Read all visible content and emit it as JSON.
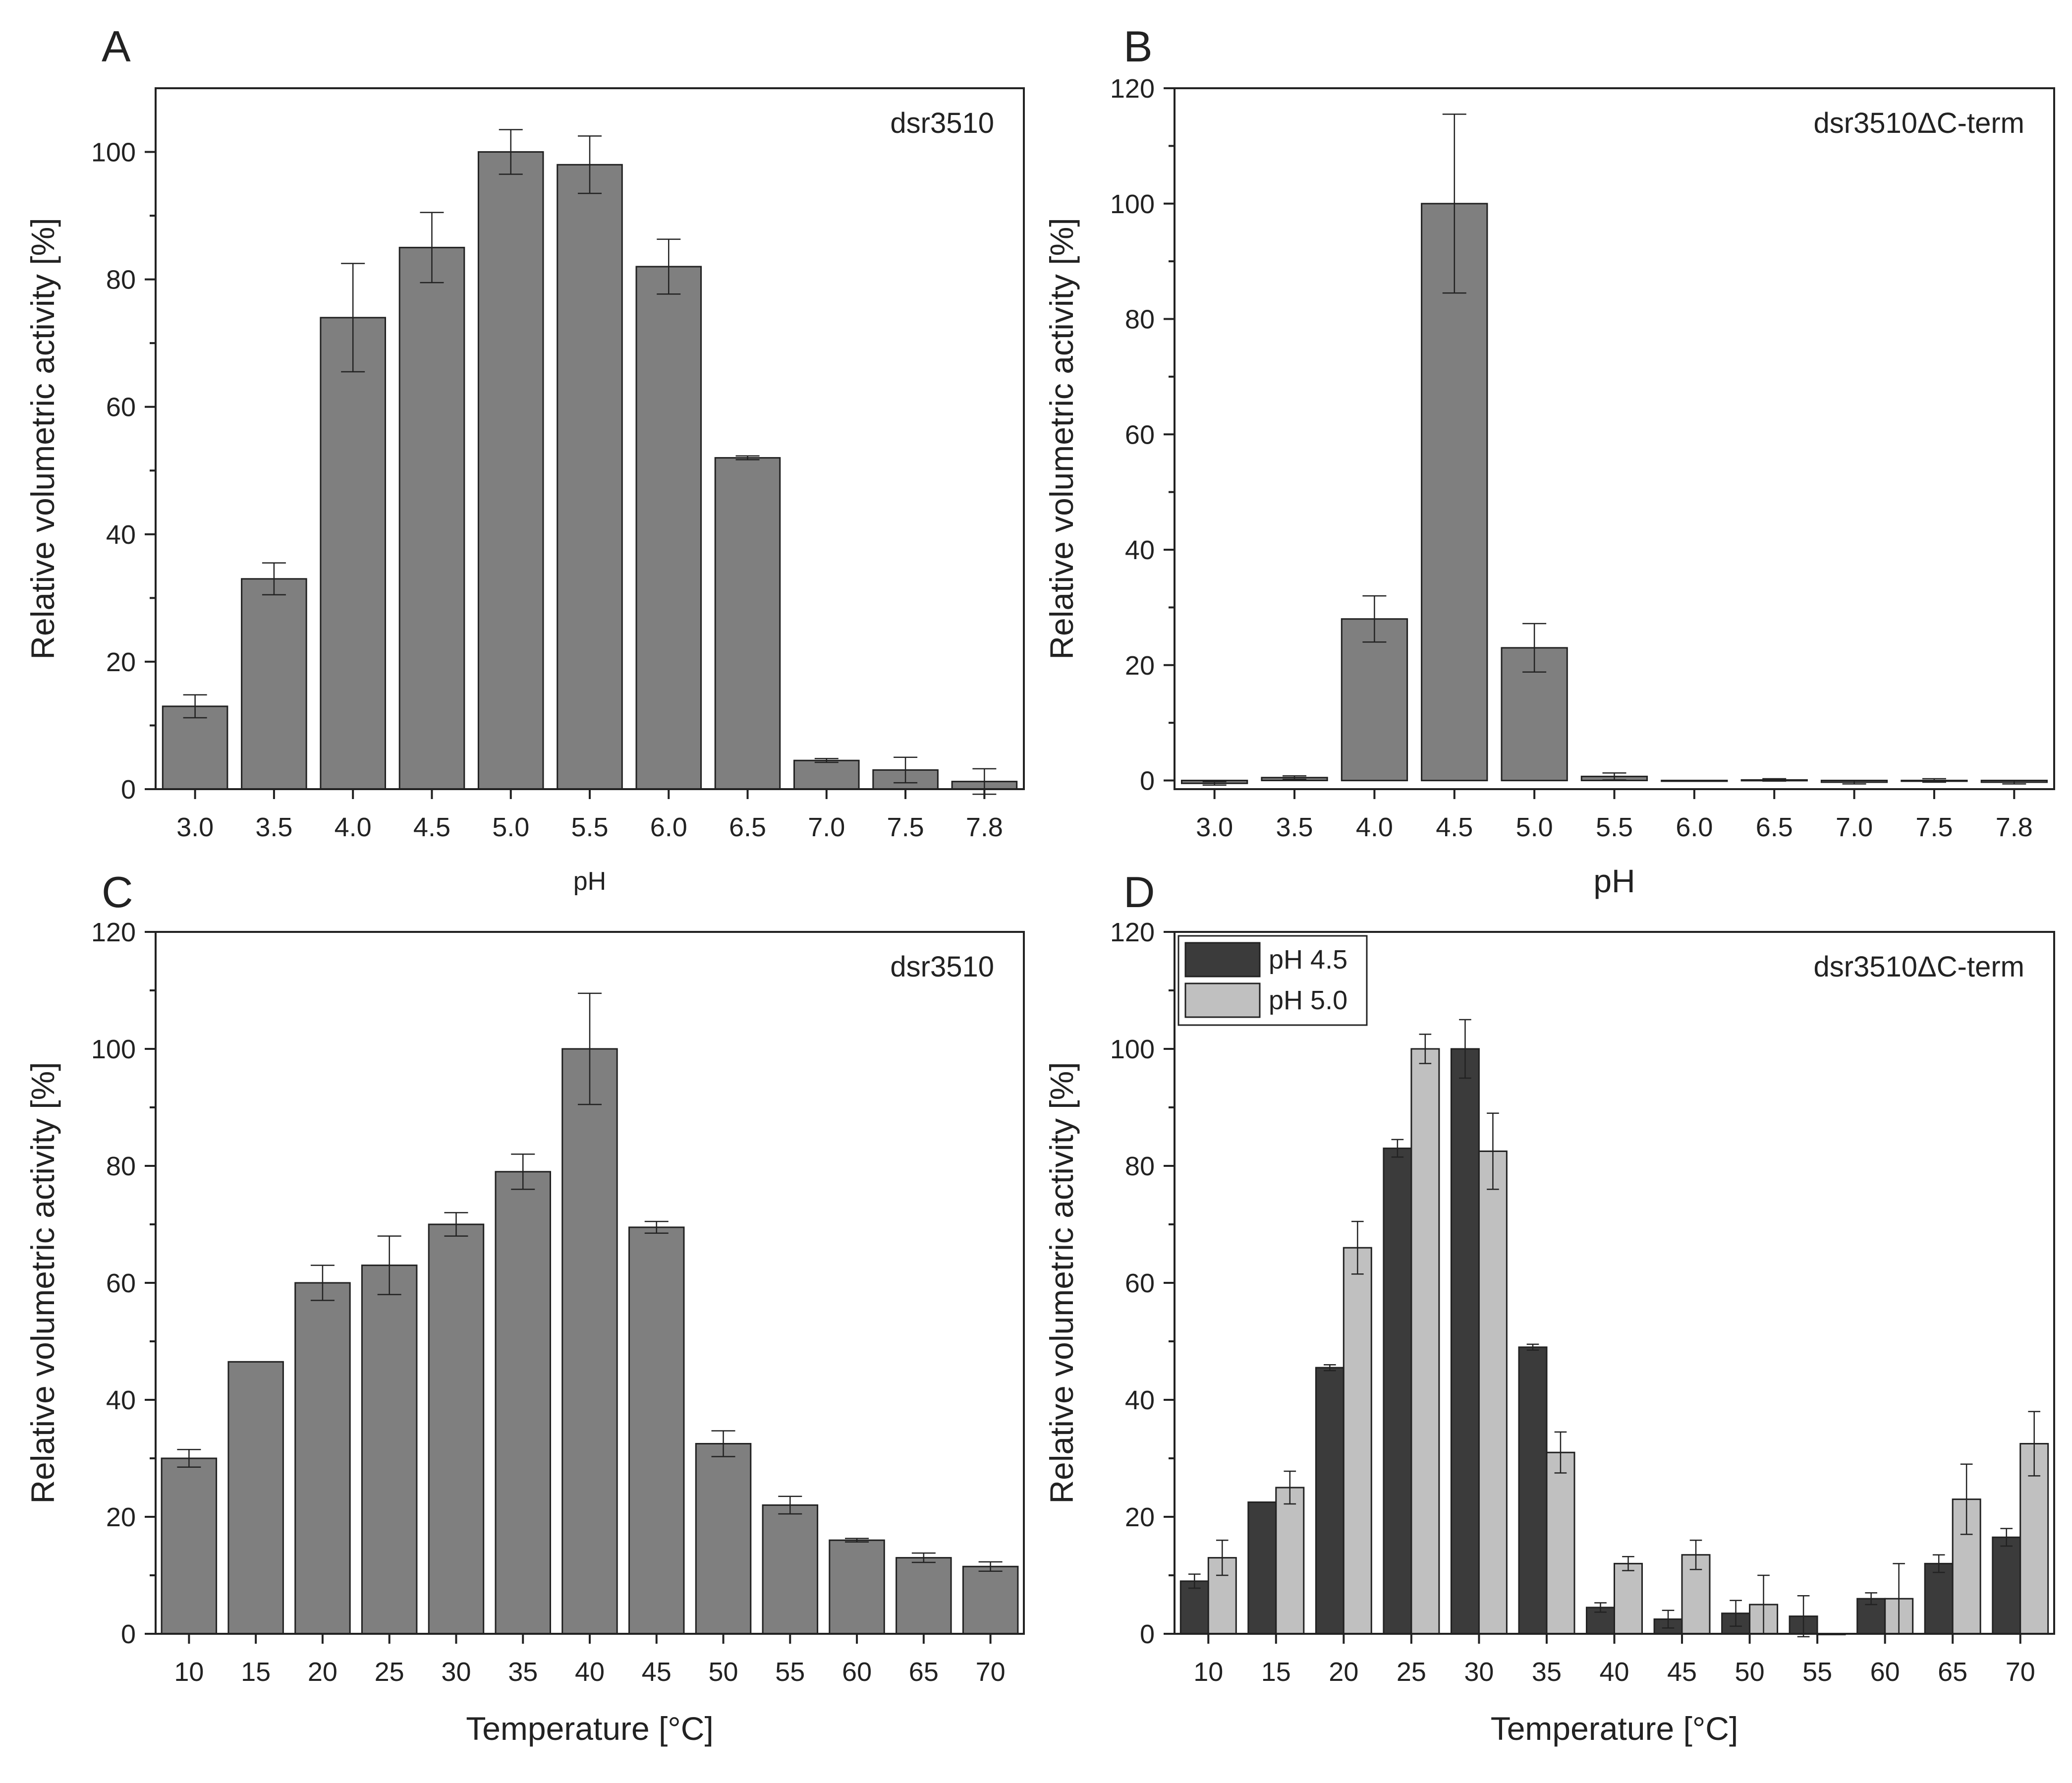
{
  "chart_data": [
    {
      "type": "bar",
      "panel": "A",
      "title": "dsr3510",
      "xlabel": "pH",
      "ylabel": "Relative volumetric activity [%]",
      "ylim": [
        0,
        110
      ],
      "yticks": [
        0,
        20,
        40,
        60,
        80,
        100
      ],
      "categories": [
        "3.0",
        "3.5",
        "4.0",
        "4.5",
        "5.0",
        "5.5",
        "6.0",
        "6.5",
        "7.0",
        "7.5",
        "7.8"
      ],
      "series": [
        {
          "name": "dsr3510",
          "color": "#7f7f7f",
          "values": [
            13,
            33,
            74,
            85,
            100,
            98,
            82,
            52,
            4.5,
            3,
            1.2
          ],
          "errors": [
            1.8,
            2.5,
            8.5,
            5.5,
            3.5,
            4.5,
            4.3,
            0.3,
            0.3,
            2,
            2
          ]
        }
      ]
    },
    {
      "type": "bar",
      "panel": "B",
      "title": "dsr3510ΔC-term",
      "xlabel": "pH",
      "ylabel": "Relative volumetric activity [%]",
      "ylim": [
        -1.5,
        120
      ],
      "yticks": [
        0,
        20,
        40,
        60,
        80,
        100,
        120
      ],
      "categories": [
        "3.0",
        "3.5",
        "4.0",
        "4.5",
        "5.0",
        "5.5",
        "6.0",
        "6.5",
        "7.0",
        "7.5",
        "7.8"
      ],
      "series": [
        {
          "name": "dsr3510ΔC-term",
          "color": "#7f7f7f",
          "values": [
            -0.5,
            0.5,
            28,
            100,
            23,
            0.7,
            0,
            0.1,
            -0.3,
            0,
            -0.3
          ],
          "errors": [
            0.3,
            0.3,
            4,
            15.5,
            4.2,
            0.6,
            0,
            0.2,
            0.3,
            0.3,
            0.3
          ]
        }
      ]
    },
    {
      "type": "bar",
      "panel": "C",
      "title": "dsr3510",
      "xlabel": "Temperature [°C]",
      "ylabel": "Relative volumetric activity [%]",
      "ylim": [
        0,
        120
      ],
      "yticks": [
        0,
        20,
        40,
        60,
        80,
        100,
        120
      ],
      "categories": [
        "10",
        "15",
        "20",
        "25",
        "30",
        "35",
        "40",
        "45",
        "50",
        "55",
        "60",
        "65",
        "70"
      ],
      "series": [
        {
          "name": "dsr3510",
          "color": "#7f7f7f",
          "values": [
            30,
            46.5,
            60,
            63,
            70,
            79,
            100,
            69.5,
            32.5,
            22,
            16,
            13,
            11.5
          ],
          "errors": [
            1.5,
            0,
            3,
            5,
            2,
            3,
            9.5,
            1,
            2.2,
            1.5,
            0.3,
            0.8,
            0.8
          ]
        }
      ]
    },
    {
      "type": "bar",
      "panel": "D",
      "title": "dsr3510ΔC-term",
      "xlabel": "Temperature [°C]",
      "ylabel": "Relative volumetric activity [%]",
      "ylim": [
        0,
        120
      ],
      "yticks": [
        0,
        20,
        40,
        60,
        80,
        100,
        120
      ],
      "categories": [
        "10",
        "15",
        "20",
        "25",
        "30",
        "35",
        "40",
        "45",
        "50",
        "55",
        "60",
        "65",
        "70"
      ],
      "legend": "top-left",
      "series": [
        {
          "name": "pH 4.5",
          "color": "#3b3b3b",
          "values": [
            9,
            22.5,
            45.5,
            83,
            100,
            49,
            4.5,
            2.5,
            3.5,
            3,
            6,
            12,
            16.5
          ],
          "errors": [
            1.2,
            0,
            0.5,
            1.5,
            5,
            0.5,
            0.8,
            1.5,
            2.2,
            3.5,
            1,
            1.5,
            1.5
          ]
        },
        {
          "name": "pH 5.0",
          "color": "#c0c0c0",
          "values": [
            13,
            25,
            66,
            100,
            82.5,
            31,
            12,
            13.5,
            5,
            0,
            6,
            23,
            32.5
          ],
          "errors": [
            3,
            2.8,
            4.5,
            2.5,
            6.5,
            3.5,
            1.2,
            2.5,
            5,
            0,
            6,
            6,
            5.5
          ]
        }
      ]
    }
  ]
}
